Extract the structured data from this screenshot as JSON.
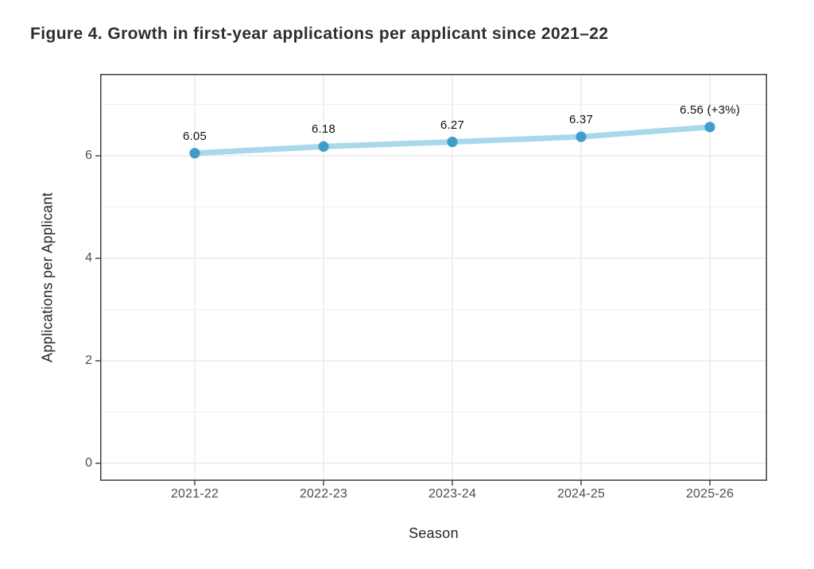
{
  "chart_data": {
    "type": "line",
    "title": "Figure 4. Growth in first-year applications per applicant since 2021–22",
    "xlabel": "Season",
    "ylabel": "Applications per Applicant",
    "categories": [
      "2021-22",
      "2022-23",
      "2023-24",
      "2024-25",
      "2025-26"
    ],
    "series": [
      {
        "name": "Applications per Applicant",
        "values": [
          6.05,
          6.18,
          6.27,
          6.37,
          6.56
        ]
      }
    ],
    "point_labels": [
      "6.05",
      "6.18",
      "6.27",
      "6.37",
      "6.56 (+3%)"
    ],
    "ylim": [
      0,
      7.6
    ],
    "yticks": [
      0,
      2,
      4,
      6
    ],
    "yminor_gridlines": [
      1,
      3,
      5,
      7
    ],
    "grid": true,
    "legend": "none",
    "colors": {
      "line": "#a9d8ea",
      "point": "#3f9ec9",
      "grid_major": "#e6e6e6",
      "grid_minor": "#f1f1f1",
      "panel_border": "#3d3d3d"
    }
  }
}
